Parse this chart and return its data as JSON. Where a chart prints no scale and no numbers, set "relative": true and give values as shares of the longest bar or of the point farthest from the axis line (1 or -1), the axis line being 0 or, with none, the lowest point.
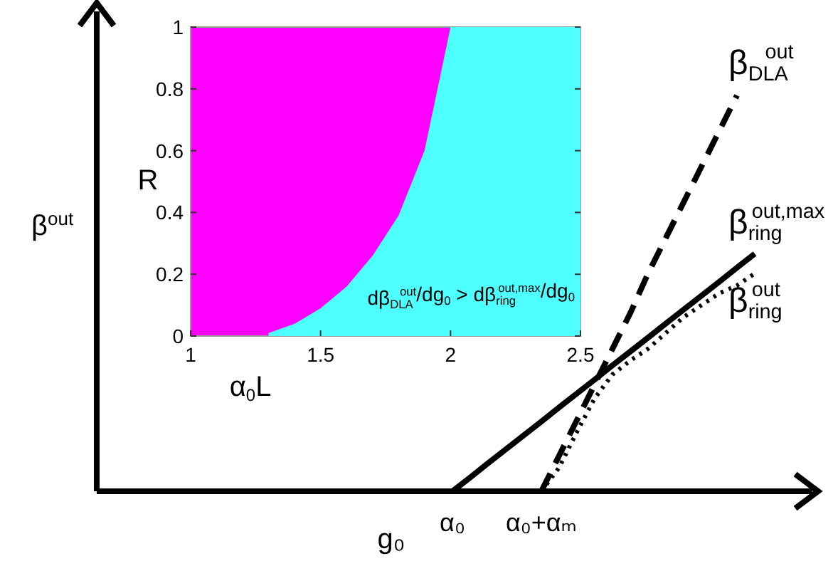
{
  "chart_data": [
    {
      "type": "line",
      "relative": true,
      "xlabel": "g₀",
      "ylabel": "β$^{out}$",
      "categories": [
        null,
        null,
        null,
        null,
        null,
        null,
        null,
        null,
        null,
        null,
        null,
        null,
        null,
        null,
        null,
        null,
        null,
        null,
        null,
        null,
        "α₀",
        null,
        null,
        null,
        null,
        "α₀+αₘ",
        null,
        null,
        null,
        null,
        null,
        null,
        null,
        null,
        null,
        null,
        null,
        null,
        null,
        null,
        null
      ],
      "tick_labels": "x",
      "series": [
        {
          "name": "β$_{DLA}$$^{out}$",
          "color": "#000000",
          "line_style": "dashed",
          "values": [
            null,
            null,
            null,
            null,
            null,
            null,
            null,
            null,
            null,
            null,
            null,
            null,
            null,
            null,
            null,
            null,
            null,
            null,
            null,
            null,
            null,
            null,
            null,
            null,
            null,
            0,
            0.09,
            0.18,
            0.27,
            0.36,
            0.45,
            0.55,
            0.64,
            0.73,
            0.82,
            0.91,
            1,
            null,
            null,
            null,
            null
          ]
        },
        {
          "name": "β$_{ring}$$^{out,max}$",
          "color": "#000000",
          "line_style": "solid",
          "values": [
            null,
            null,
            null,
            null,
            null,
            null,
            null,
            null,
            null,
            null,
            null,
            null,
            null,
            null,
            null,
            null,
            null,
            null,
            null,
            null,
            0,
            0.035,
            0.071,
            0.106,
            0.141,
            0.176,
            0.212,
            0.247,
            0.282,
            0.318,
            0.353,
            0.388,
            0.424,
            0.459,
            0.494,
            0.529,
            0.565,
            0.6,
            null,
            null,
            null
          ]
        },
        {
          "name": "β$_{ring}$$^{out}$",
          "color": "#000000",
          "line_style": "dotted",
          "values": [
            null,
            null,
            null,
            null,
            null,
            null,
            null,
            null,
            null,
            null,
            null,
            null,
            null,
            null,
            null,
            null,
            null,
            null,
            null,
            null,
            null,
            null,
            null,
            null,
            null,
            0,
            0.06,
            0.15,
            0.235,
            0.295,
            0.33,
            0.36,
            0.4,
            0.44,
            0.47,
            0.5,
            0.52,
            0.55,
            null,
            null,
            null
          ]
        }
      ]
    },
    {
      "type": "area",
      "xlabel": "α$_{0}$L",
      "ylabel": "R",
      "xlim": [
        1,
        2.5
      ],
      "ylim": [
        0,
        1
      ],
      "xticks": [
        1,
        1.5,
        2,
        2.5
      ],
      "yticks": [
        0,
        0.2,
        0.4,
        0.6,
        0.8,
        1
      ],
      "x": [
        1.3,
        1.4,
        1.5,
        1.6,
        1.7,
        1.8,
        1.9,
        2,
        2.5
      ],
      "bands": [
        {
          "axis": "y",
          "from": 0,
          "to": 1,
          "color": "#ff00ff"
        }
      ],
      "annotations": [
        "dβ$_{DLA}$$^{out}$/dg$_{0}$ > dβ$_{ring}$$^{out,max}$/dg$_{0}$"
      ],
      "series": [
        {
          "color": "#4dffff",
          "values": [
            0.01,
            0.04,
            0.09,
            0.16,
            0.26,
            0.39,
            0.6,
            1,
            1
          ]
        }
      ]
    }
  ]
}
